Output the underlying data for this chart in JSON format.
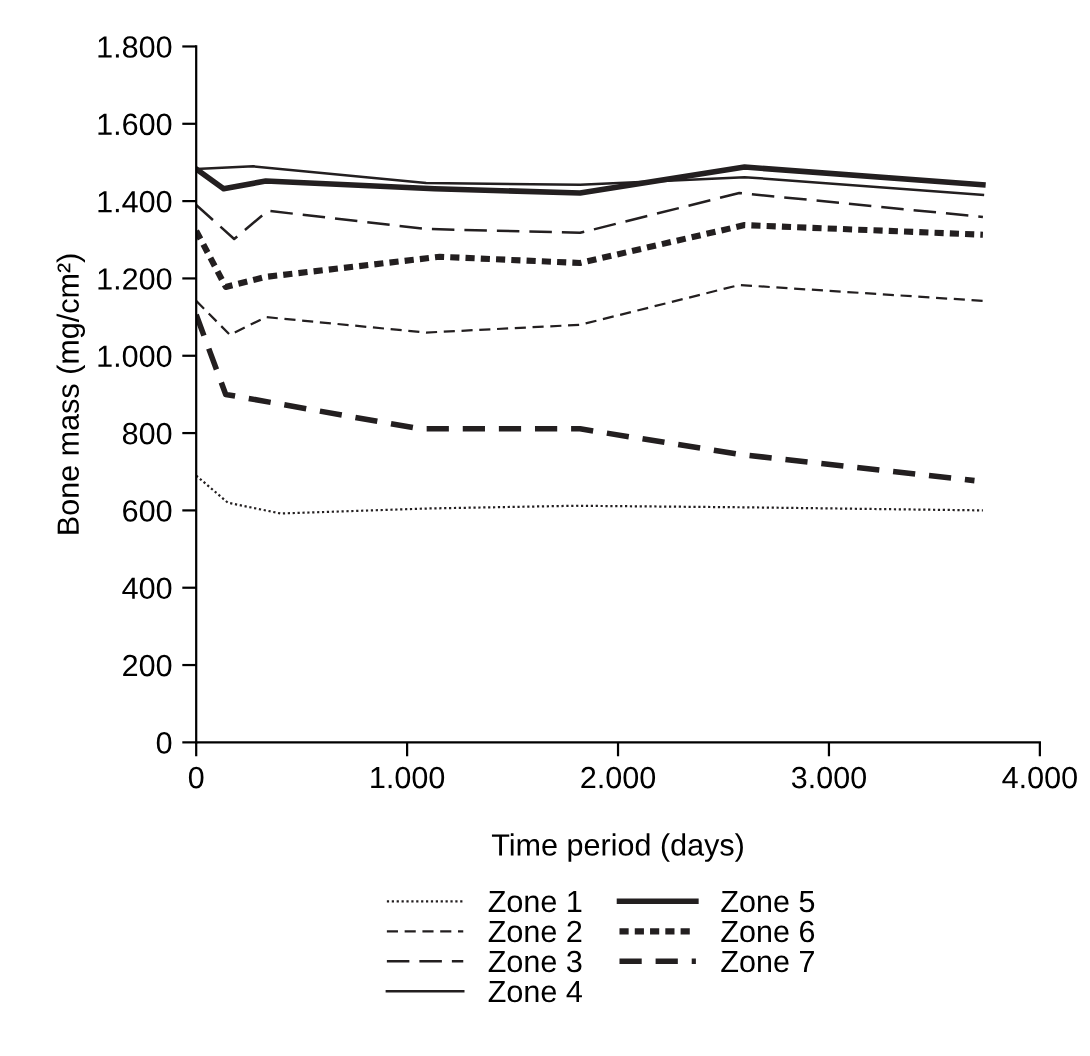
{
  "chart_data": {
    "type": "line",
    "xlabel": "Time period (days)",
    "ylabel": "Bone mass (mg/cm²)",
    "xlim": [
      0,
      4000
    ],
    "xticks": [
      {
        "value": 0,
        "label": "0"
      },
      {
        "value": 1000,
        "label": "1.000"
      },
      {
        "value": 2000,
        "label": "2.000"
      },
      {
        "value": 3000,
        "label": "3.000"
      },
      {
        "value": 4000,
        "label": "4.000"
      }
    ],
    "ylim": [
      0,
      1800
    ],
    "yticks": [
      {
        "value": 0,
        "label": "0"
      },
      {
        "value": 200,
        "label": "200"
      },
      {
        "value": 400,
        "label": "400"
      },
      {
        "value": 600,
        "label": "600"
      },
      {
        "value": 800,
        "label": "800"
      },
      {
        "value": 1000,
        "label": "1.000"
      },
      {
        "value": 1200,
        "label": "1.200"
      },
      {
        "value": 1400,
        "label": "1.400"
      },
      {
        "value": 1600,
        "label": "1.600"
      },
      {
        "value": 1800,
        "label": "1.800"
      }
    ],
    "grid": false,
    "legend": "bottom",
    "marker": "none",
    "series": [
      {
        "name": "Zone 1",
        "color": "#231f20",
        "line_style": "dotted",
        "x": [
          0,
          150,
          400,
          1100,
          1800,
          2600,
          3730
        ],
        "values": [
          690,
          620,
          592,
          605,
          612,
          608,
          600
        ]
      },
      {
        "name": "Zone 2",
        "color": "#231f20",
        "line_style": "dashed",
        "x": [
          0,
          160,
          330,
          1090,
          1820,
          2575,
          3730
        ],
        "values": [
          1142,
          1054,
          1100,
          1060,
          1080,
          1183,
          1142
        ]
      },
      {
        "name": "Zone 3",
        "color": "#231f20",
        "line_style": "dashed",
        "x": [
          0,
          180,
          340,
          1090,
          1820,
          2575,
          3730
        ],
        "values": [
          1390,
          1302,
          1375,
          1328,
          1318,
          1421,
          1359
        ]
      },
      {
        "name": "Zone 4",
        "color": "#231f20",
        "line_style": "solid",
        "x": [
          0,
          270,
          1090,
          1820,
          2600,
          3730
        ],
        "values": [
          1483,
          1490,
          1447,
          1442,
          1462,
          1416
        ]
      },
      {
        "name": "Zone 5",
        "color": "#231f20",
        "line_style": "solid",
        "x": [
          0,
          130,
          330,
          1130,
          1820,
          2600,
          3730
        ],
        "values": [
          1483,
          1432,
          1452,
          1432,
          1421,
          1488,
          1442
        ]
      },
      {
        "name": "Zone 6",
        "color": "#231f20",
        "line_style": "dotted",
        "x": [
          0,
          140,
          330,
          1155,
          1820,
          2600,
          3730
        ],
        "values": [
          1323,
          1178,
          1204,
          1256,
          1240,
          1338,
          1313
        ]
      },
      {
        "name": "Zone 7",
        "color": "#231f20",
        "line_style": "dashed",
        "x": [
          0,
          140,
          1060,
          1820,
          2575,
          3690
        ],
        "values": [
          1106,
          900,
          811,
          811,
          745,
          677
        ]
      }
    ]
  }
}
